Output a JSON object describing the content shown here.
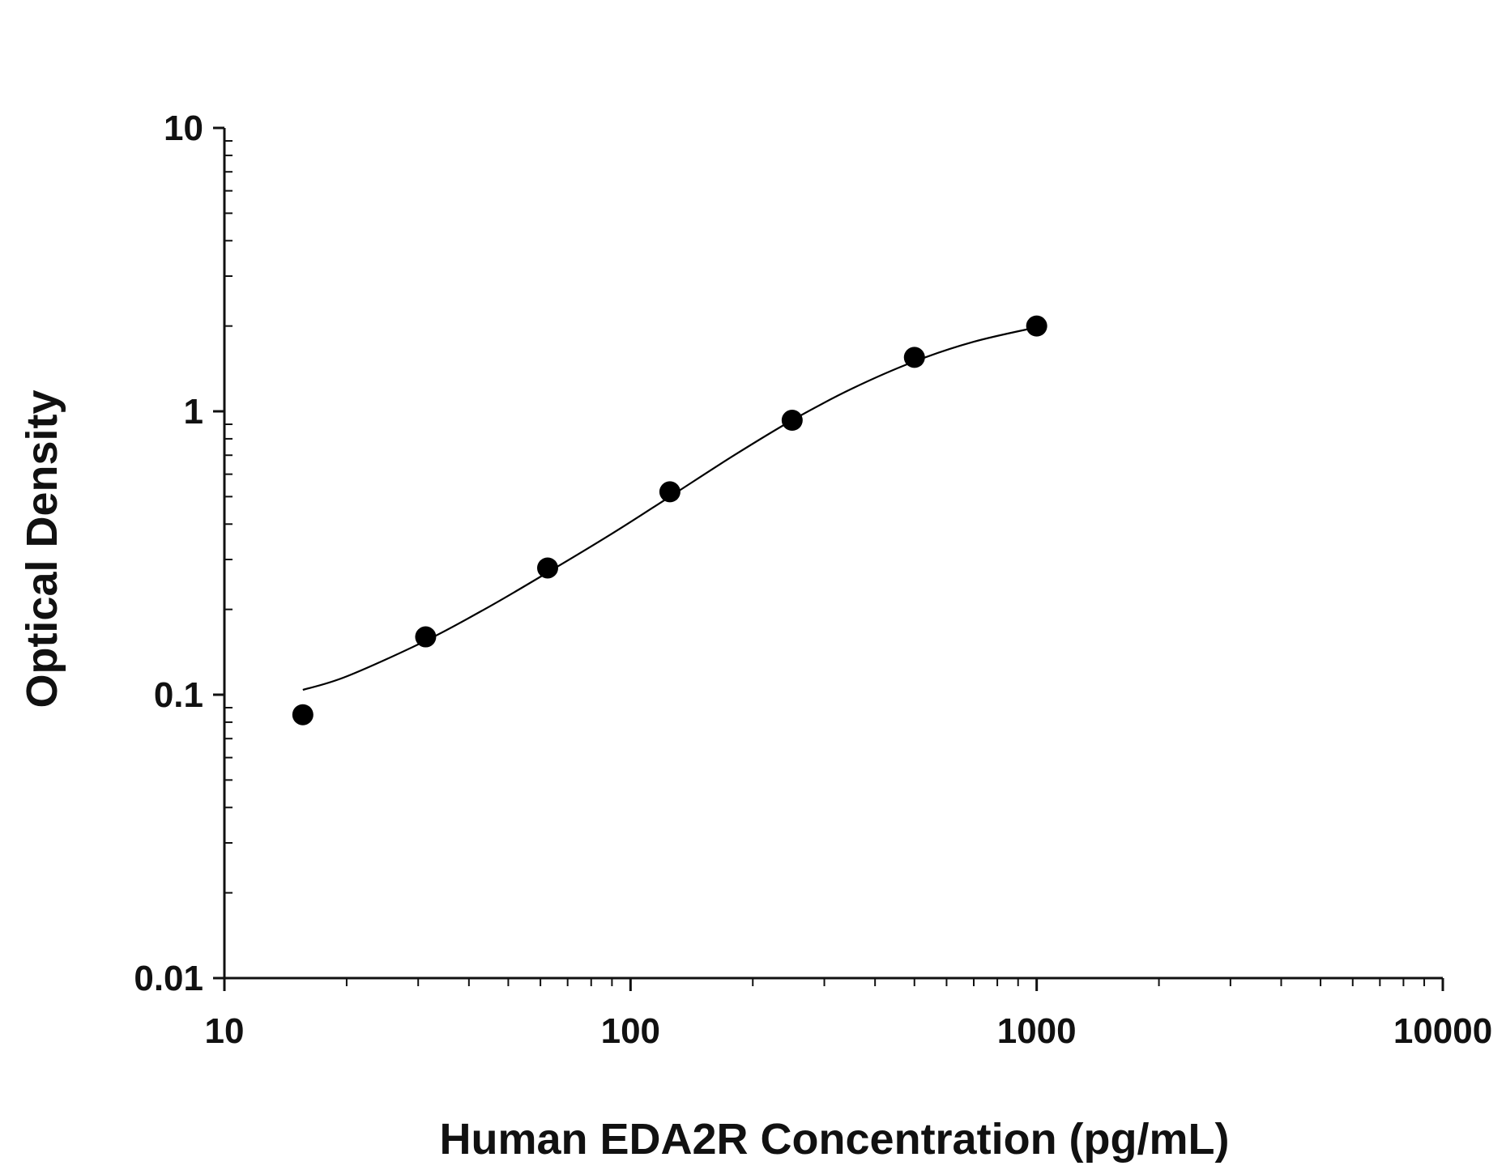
{
  "chart_data": {
    "type": "scatter",
    "xlabel": "Human EDA2R Concentration (pg/mL)",
    "ylabel": "Optical Density",
    "x_scale": "log",
    "y_scale": "log",
    "xlim": [
      10,
      10000
    ],
    "ylim": [
      0.01,
      10
    ],
    "x_ticks": [
      {
        "value": 10,
        "label": "10"
      },
      {
        "value": 100,
        "label": "100"
      },
      {
        "value": 1000,
        "label": "1000"
      },
      {
        "value": 10000,
        "label": "10000"
      }
    ],
    "y_ticks": [
      {
        "value": 0.01,
        "label": "0.01"
      },
      {
        "value": 0.1,
        "label": "0.1"
      },
      {
        "value": 1,
        "label": "1"
      },
      {
        "value": 10,
        "label": "10"
      }
    ],
    "grid": false,
    "series": [
      {
        "points": [
          {
            "x": 15.6,
            "y": 0.085
          },
          {
            "x": 31.3,
            "y": 0.16
          },
          {
            "x": 62.5,
            "y": 0.28
          },
          {
            "x": 125,
            "y": 0.52
          },
          {
            "x": 250,
            "y": 0.93
          },
          {
            "x": 500,
            "y": 1.55
          },
          {
            "x": 1000,
            "y": 2.0
          }
        ],
        "marker_color": "#000000"
      }
    ],
    "fit_curve": {
      "type": "4PL",
      "points": [
        {
          "x": 15.6,
          "y": 0.104
        },
        {
          "x": 20,
          "y": 0.116
        },
        {
          "x": 31.3,
          "y": 0.155
        },
        {
          "x": 45,
          "y": 0.205
        },
        {
          "x": 62.5,
          "y": 0.27
        },
        {
          "x": 90,
          "y": 0.37
        },
        {
          "x": 125,
          "y": 0.5
        },
        {
          "x": 180,
          "y": 0.7
        },
        {
          "x": 250,
          "y": 0.93
        },
        {
          "x": 350,
          "y": 1.2
        },
        {
          "x": 500,
          "y": 1.5
        },
        {
          "x": 700,
          "y": 1.76
        },
        {
          "x": 1000,
          "y": 1.98
        }
      ],
      "color": "#000000"
    }
  }
}
